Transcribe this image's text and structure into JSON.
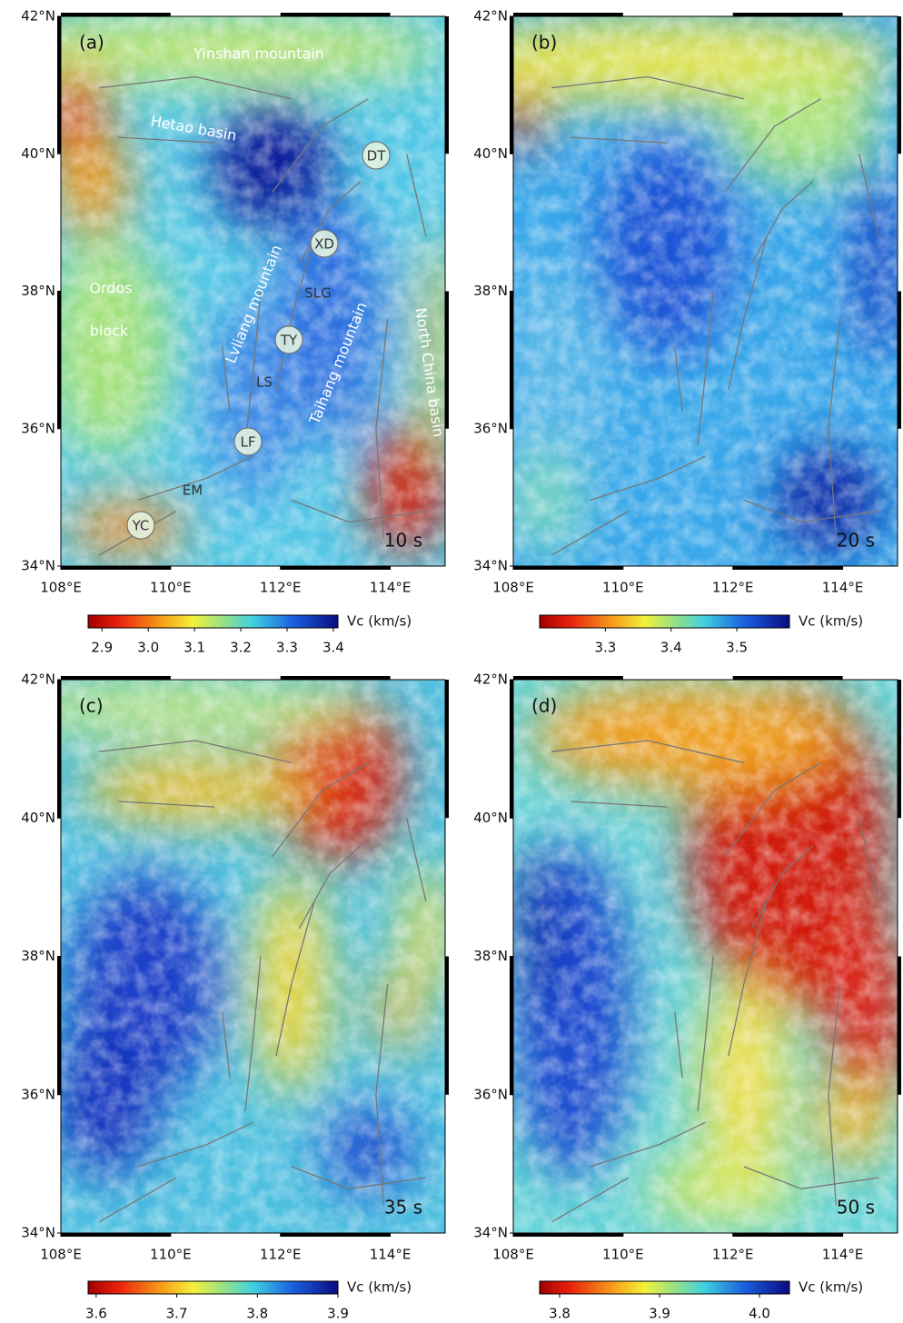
{
  "latlim": [
    34,
    42
  ],
  "lonlim": [
    108,
    115
  ],
  "lat_ticks": [
    {
      "value": 34,
      "label": "34°N"
    },
    {
      "value": 36,
      "label": "36°N"
    },
    {
      "value": 38,
      "label": "38°N"
    },
    {
      "value": 40,
      "label": "40°N"
    },
    {
      "value": 42,
      "label": "42°N"
    }
  ],
  "lon_ticks": [
    {
      "value": 108,
      "label": "108°E"
    },
    {
      "value": 110,
      "label": "110°E"
    },
    {
      "value": 112,
      "label": "112°E"
    },
    {
      "value": 114,
      "label": "114°E"
    }
  ],
  "panels": [
    {
      "label": "(a)",
      "period": "10 s",
      "colorbar": {
        "title": "Vc (km/s)",
        "range": [
          2.87,
          3.41
        ],
        "ticks": [
          2.9,
          {
            "value": 3,
            "label": "3.0"
          },
          3.1,
          3.2,
          3.3,
          3.4
        ]
      },
      "annotations": [
        "Yinshan mountain",
        "Hetao basin",
        "DT",
        "XD",
        "Ordos",
        "block",
        "Lvliang mountain",
        "SLG",
        "TY",
        "Taihang mountain",
        "North China basin",
        "LS",
        "LF",
        "EM",
        "YC"
      ]
    },
    {
      "label": "(b)",
      "period": "20 s",
      "colorbar": {
        "title": "Vc (km/s)",
        "range": [
          3.2,
          3.58
        ],
        "ticks": [
          3.3,
          3.4,
          3.5
        ]
      }
    },
    {
      "label": "(c)",
      "period": "35 s",
      "colorbar": {
        "title": "Vc (km/s)",
        "range": [
          3.59,
          3.9
        ],
        "ticks": [
          3.6,
          3.7,
          3.8,
          3.9
        ]
      }
    },
    {
      "label": "(d)",
      "period": "50 s",
      "colorbar": {
        "title": "Vc (km/s)",
        "range": [
          3.78,
          4.03
        ],
        "ticks": [
          3.8,
          3.9,
          {
            "value": 4,
            "label": "4.0"
          }
        ]
      }
    }
  ]
}
